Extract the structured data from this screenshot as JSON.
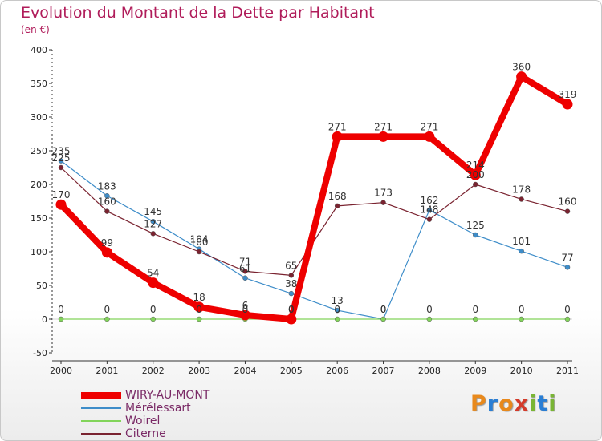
{
  "title": "Evolution du Montant de la Dette par Habitant",
  "unit": "(en €)",
  "logo": {
    "text": "Proxiti",
    "letters": [
      "P",
      "r",
      "o",
      "x",
      "i",
      "t",
      "i"
    ],
    "colors": [
      "#e8891c",
      "#2a7ed4",
      "#e8891c",
      "#d43a2a",
      "#79b534",
      "#2a7ed4",
      "#79b534"
    ]
  },
  "chart_data": {
    "type": "line",
    "title": "Evolution du Montant de la Dette par Habitant",
    "ylabel": "(en €)",
    "xlabel": "",
    "x": [
      "2000",
      "2001",
      "2002",
      "2003",
      "2004",
      "2005",
      "2006",
      "2007",
      "2008",
      "2009",
      "2010",
      "2011"
    ],
    "ylim": [
      -50,
      400
    ],
    "yticks": [
      "-50",
      "0",
      "50",
      "100",
      "150",
      "200",
      "250",
      "300",
      "350",
      "400"
    ],
    "grid": false,
    "legend_position": "bottom-left",
    "series": [
      {
        "name": "WIRY-AU-MONT",
        "color": "#ee0000",
        "values": [
          170,
          99,
          54,
          18,
          6,
          0,
          271,
          271,
          271,
          214,
          360,
          319
        ],
        "labels": [
          "170",
          "99",
          "54",
          "18",
          "6",
          "0",
          "271",
          "271",
          "271",
          "214",
          "360",
          "319"
        ]
      },
      {
        "name": "Mérélessart",
        "color": "#3e8dc9",
        "values": [
          235,
          183,
          145,
          104,
          61,
          38,
          13,
          0,
          162,
          125,
          101,
          77
        ],
        "labels": [
          "235",
          "183",
          "145",
          "104",
          "61",
          "38",
          "13",
          "0",
          "162",
          "125",
          "101",
          "77"
        ]
      },
      {
        "name": "Woirel",
        "color": "#82d45a",
        "values": [
          0,
          0,
          0,
          0,
          0,
          0,
          0,
          0,
          0,
          0,
          0,
          0
        ],
        "labels": [
          "0",
          "0",
          "0",
          "0",
          "0",
          "0",
          "0",
          "0",
          "0",
          "0",
          "0",
          "0"
        ]
      },
      {
        "name": "Citerne",
        "color": "#7a2330",
        "values": [
          225,
          160,
          127,
          100,
          71,
          65,
          168,
          173,
          148,
          200,
          178,
          160
        ],
        "labels": [
          "225",
          "160",
          "127",
          "100",
          "71",
          "65",
          "168",
          "173",
          "148",
          "200",
          "178",
          "160"
        ]
      }
    ]
  }
}
